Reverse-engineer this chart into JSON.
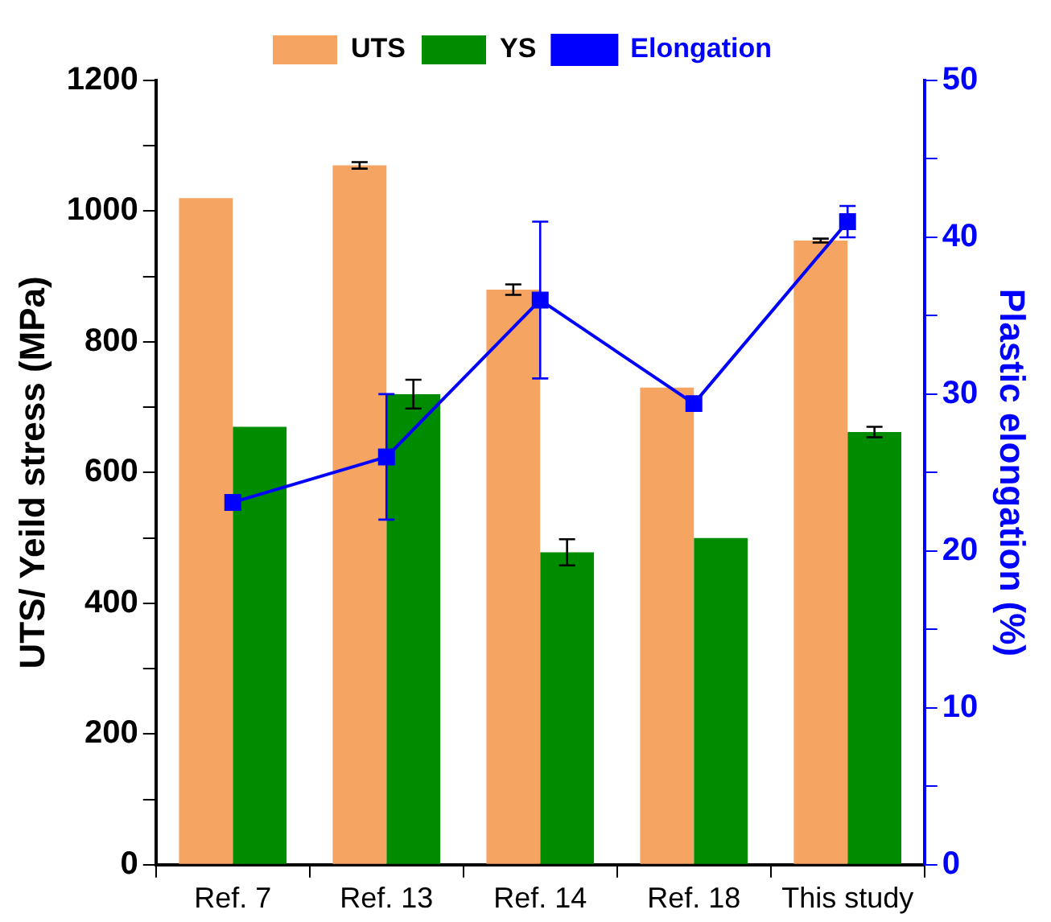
{
  "chart_data": {
    "type": "bar",
    "ylabel": "UTS/ Yeild stress (MPa)",
    "y2label": "Plastic elongation (%)",
    "categories": [
      "Ref. 7",
      "Ref. 13",
      "Ref. 14",
      "Ref. 18",
      "This study"
    ],
    "series": [
      {
        "name": "UTS",
        "color": "#f5a462",
        "values": [
          1020,
          1070,
          880,
          730,
          955
        ],
        "errors": [
          null,
          5,
          8,
          null,
          3
        ]
      },
      {
        "name": "YS",
        "color": "#008c00",
        "values": [
          670,
          720,
          478,
          500,
          662
        ],
        "errors": [
          null,
          22,
          20,
          null,
          8
        ]
      },
      {
        "name": "Elongation",
        "type": "line",
        "axis": "y2",
        "color": "#0000ff",
        "values": [
          23.1,
          26,
          36,
          29.4,
          41
        ],
        "errors": [
          null,
          4,
          5,
          null,
          1
        ]
      }
    ],
    "ylim": [
      0,
      1200
    ],
    "yticks": [
      0,
      {
        "value": 100,
        "label": null
      },
      200,
      {
        "value": 300,
        "label": null
      },
      400,
      {
        "value": 500,
        "label": null
      },
      600,
      {
        "value": 700,
        "label": null
      },
      800,
      {
        "value": 900,
        "label": null
      },
      1000,
      {
        "value": 1100,
        "label": null
      },
      1200
    ],
    "y2lim": [
      0,
      50
    ],
    "y2ticks": [
      0,
      {
        "value": 5,
        "label": null
      },
      10,
      {
        "value": 15,
        "label": null
      },
      20,
      {
        "value": 25,
        "label": null
      },
      30,
      {
        "value": 35,
        "label": null
      },
      40,
      {
        "value": 45,
        "label": null
      },
      50
    ],
    "grid": false,
    "legend": "top",
    "marker": "square",
    "line_style": "solid"
  }
}
